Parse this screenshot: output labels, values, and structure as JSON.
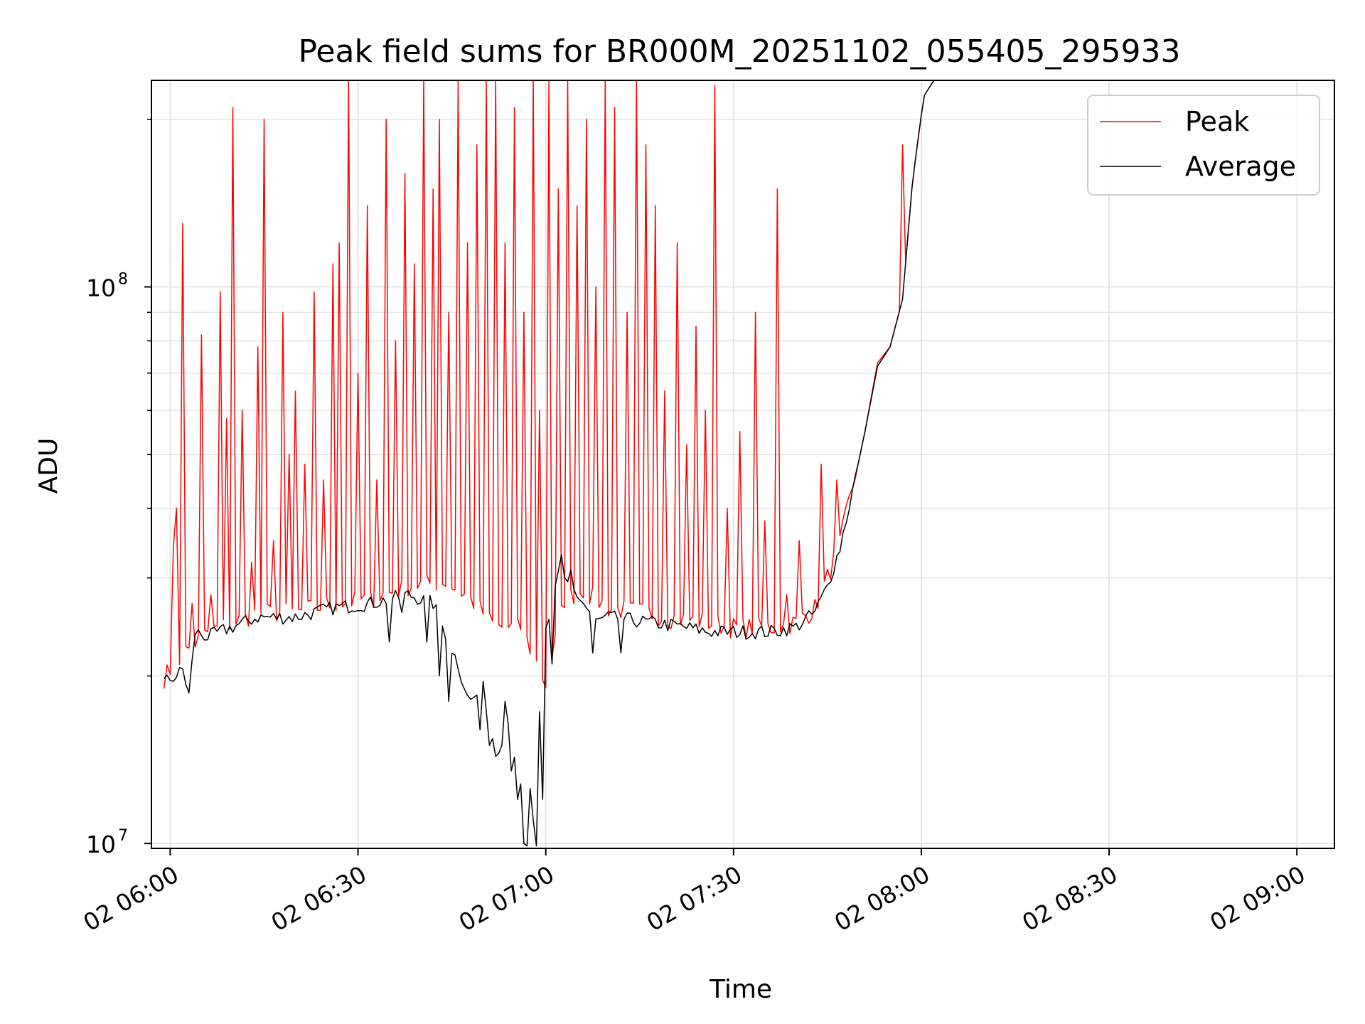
{
  "chart_data": {
    "type": "line",
    "title": "Peak field sums for BR000M_20251102_055405_295933",
    "xlabel": "Time",
    "ylabel": "ADU",
    "y_scale": "log",
    "ylim": [
      9800000,
      235000000
    ],
    "xlim_minutes": [
      -1.5,
      93
    ],
    "x_ticks": [
      {
        "minutes": 0,
        "label": "02 06:00"
      },
      {
        "minutes": 15,
        "label": "02 06:30"
      },
      {
        "minutes": 30,
        "label": "02 07:00"
      },
      {
        "minutes": 45,
        "label": "02 07:30"
      },
      {
        "minutes": 60,
        "label": "02 08:00"
      },
      {
        "minutes": 75,
        "label": "02 08:30"
      },
      {
        "minutes": 90,
        "label": "02 09:00"
      }
    ],
    "y_major_ticks": [
      {
        "value": 10000000,
        "base": "10",
        "exp": "7"
      },
      {
        "value": 100000000,
        "base": "10",
        "exp": "8"
      }
    ],
    "y_minor_ticks": [
      20000000,
      30000000,
      40000000,
      50000000,
      60000000,
      70000000,
      80000000,
      90000000,
      200000000
    ],
    "grid": true,
    "legend_position": "top-right",
    "series": [
      {
        "name": "Peak",
        "color": "#ff0000",
        "baseline": [
          [
            -0.5,
            19500000
          ],
          [
            1,
            21500000
          ],
          [
            3,
            23500000
          ],
          [
            5,
            24500000
          ],
          [
            7,
            25500000
          ],
          [
            10,
            25500000
          ],
          [
            13,
            26500000
          ],
          [
            16,
            27000000
          ],
          [
            19,
            28500000
          ],
          [
            22,
            29000000
          ],
          [
            24,
            27000000
          ],
          [
            26,
            24000000
          ],
          [
            28,
            24000000
          ],
          [
            30,
            19000000
          ],
          [
            31.5,
            27000000
          ],
          [
            33,
            28000000
          ],
          [
            35,
            26000000
          ],
          [
            38,
            25500000
          ],
          [
            40,
            25000000
          ],
          [
            43,
            24500000
          ],
          [
            45,
            24000000
          ],
          [
            48,
            24000000
          ],
          [
            50,
            24500000
          ],
          [
            51.5,
            26000000
          ],
          [
            52.5,
            29500000
          ],
          [
            53.5,
            34000000
          ],
          [
            54.5,
            43000000
          ],
          [
            55.5,
            55000000
          ],
          [
            56.5,
            73000000
          ],
          [
            57.5,
            78000000
          ],
          [
            58.5,
            95000000
          ],
          [
            59.3,
            155000000
          ],
          [
            60.2,
            220000000
          ],
          [
            61,
            235000000
          ],
          [
            93,
            235000000
          ]
        ],
        "spikes": [
          [
            0.2,
            34000000
          ],
          [
            0.6,
            40000000
          ],
          [
            1.1,
            130000000
          ],
          [
            1.8,
            27000000
          ],
          [
            2.5,
            82000000
          ],
          [
            3.3,
            28000000
          ],
          [
            3.9,
            98000000
          ],
          [
            4.4,
            58000000
          ],
          [
            5.1,
            210000000
          ],
          [
            5.8,
            60000000
          ],
          [
            6.4,
            32000000
          ],
          [
            7.0,
            78000000
          ],
          [
            7.6,
            200000000
          ],
          [
            8.3,
            35000000
          ],
          [
            8.9,
            90000000
          ],
          [
            9.4,
            50000000
          ],
          [
            10.0,
            65000000
          ],
          [
            10.8,
            48000000
          ],
          [
            11.5,
            98000000
          ],
          [
            12.2,
            45000000
          ],
          [
            12.9,
            110000000
          ],
          [
            13.6,
            120000000
          ],
          [
            14.3,
            235000000
          ],
          [
            15.0,
            70000000
          ],
          [
            15.8,
            140000000
          ],
          [
            16.5,
            45000000
          ],
          [
            17.2,
            200000000
          ],
          [
            18.0,
            80000000
          ],
          [
            18.7,
            160000000
          ],
          [
            19.5,
            110000000
          ],
          [
            20.2,
            235000000
          ],
          [
            20.9,
            150000000
          ],
          [
            21.6,
            200000000
          ],
          [
            22.3,
            90000000
          ],
          [
            23.0,
            235000000
          ],
          [
            23.8,
            120000000
          ],
          [
            24.5,
            180000000
          ],
          [
            25.2,
            235000000
          ],
          [
            26.0,
            235000000
          ],
          [
            26.8,
            120000000
          ],
          [
            27.5,
            210000000
          ],
          [
            28.2,
            90000000
          ],
          [
            28.9,
            235000000
          ],
          [
            29.6,
            60000000
          ],
          [
            30.3,
            235000000
          ],
          [
            31.0,
            150000000
          ],
          [
            31.8,
            235000000
          ],
          [
            32.5,
            140000000
          ],
          [
            33.3,
            200000000
          ],
          [
            34.0,
            100000000
          ],
          [
            34.8,
            235000000
          ],
          [
            35.6,
            210000000
          ],
          [
            36.4,
            90000000
          ],
          [
            37.2,
            235000000
          ],
          [
            38.0,
            180000000
          ],
          [
            38.8,
            140000000
          ],
          [
            39.6,
            65000000
          ],
          [
            40.4,
            120000000
          ],
          [
            41.2,
            52000000
          ],
          [
            42.0,
            85000000
          ],
          [
            42.8,
            60000000
          ],
          [
            43.6,
            230000000
          ],
          [
            44.4,
            40000000
          ],
          [
            45.5,
            55000000
          ],
          [
            46.8,
            90000000
          ],
          [
            47.6,
            38000000
          ],
          [
            48.5,
            150000000
          ],
          [
            49.3,
            28000000
          ],
          [
            50.2,
            35000000
          ],
          [
            52.0,
            48000000
          ],
          [
            53.2,
            45000000
          ],
          [
            58.6,
            180000000
          ]
        ]
      },
      {
        "name": "Average",
        "color": "#000000",
        "baseline": [
          [
            -0.5,
            19500000
          ],
          [
            0.5,
            20000000
          ],
          [
            1,
            20500000
          ],
          [
            1.5,
            18500000
          ],
          [
            2,
            24000000
          ],
          [
            3,
            23500000
          ],
          [
            5,
            24500000
          ],
          [
            7,
            25500000
          ],
          [
            10,
            25500000
          ],
          [
            13,
            26500000
          ],
          [
            16,
            27000000
          ],
          [
            19,
            28000000
          ],
          [
            21,
            27000000
          ],
          [
            23,
            21000000
          ],
          [
            24,
            18000000
          ],
          [
            25,
            19000000
          ],
          [
            26,
            14500000
          ],
          [
            27,
            16500000
          ],
          [
            28,
            13000000
          ],
          [
            29,
            12000000
          ],
          [
            30,
            24000000
          ],
          [
            31,
            30000000
          ],
          [
            32,
            29000000
          ],
          [
            33,
            27000000
          ],
          [
            34,
            25000000
          ],
          [
            35,
            25500000
          ],
          [
            38,
            25000000
          ],
          [
            41,
            24500000
          ],
          [
            43,
            24000000
          ],
          [
            45,
            24000000
          ],
          [
            48,
            24000000
          ],
          [
            50,
            24500000
          ],
          [
            51.5,
            26000000
          ],
          [
            52.5,
            29000000
          ],
          [
            53.5,
            34000000
          ],
          [
            54.5,
            43000000
          ],
          [
            55.5,
            55000000
          ],
          [
            56.5,
            72000000
          ],
          [
            57.5,
            78000000
          ],
          [
            58.5,
            95000000
          ],
          [
            59.3,
            155000000
          ],
          [
            60.2,
            220000000
          ],
          [
            61,
            235000000
          ],
          [
            93,
            235000000
          ]
        ],
        "dips": [
          [
            17.5,
            23000000
          ],
          [
            18.5,
            26000000
          ],
          [
            20.5,
            23000000
          ],
          [
            21.5,
            20000000
          ],
          [
            22.2,
            18000000
          ],
          [
            23.3,
            19500000
          ],
          [
            24.7,
            16000000
          ],
          [
            25.6,
            15000000
          ],
          [
            26.7,
            18000000
          ],
          [
            27.3,
            13500000
          ],
          [
            27.8,
            12000000
          ],
          [
            28.3,
            10000000
          ],
          [
            28.6,
            9900000
          ],
          [
            29.0,
            11000000
          ],
          [
            29.3,
            9900000
          ],
          [
            29.7,
            12000000
          ],
          [
            30.6,
            21000000
          ],
          [
            31.3,
            33000000
          ],
          [
            32.0,
            31000000
          ],
          [
            33.8,
            22000000
          ],
          [
            36.0,
            22000000
          ]
        ]
      }
    ]
  }
}
